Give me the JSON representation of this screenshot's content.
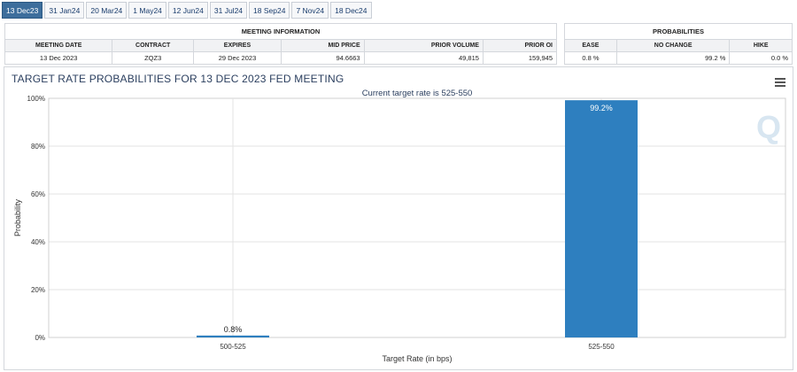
{
  "tabs": [
    {
      "label": "13 Dec23",
      "active": true
    },
    {
      "label": "31 Jan24",
      "active": false
    },
    {
      "label": "20 Mar24",
      "active": false
    },
    {
      "label": "1 May24",
      "active": false
    },
    {
      "label": "12 Jun24",
      "active": false
    },
    {
      "label": "31 Jul24",
      "active": false
    },
    {
      "label": "18 Sep24",
      "active": false
    },
    {
      "label": "7 Nov24",
      "active": false
    },
    {
      "label": "18 Dec24",
      "active": false
    }
  ],
  "meeting_info": {
    "group_label": "MEETING INFORMATION",
    "headers": [
      "MEETING DATE",
      "CONTRACT",
      "EXPIRES",
      "MID PRICE",
      "PRIOR VOLUME",
      "PRIOR OI"
    ],
    "values": [
      "13 Dec 2023",
      "ZQZ3",
      "29 Dec 2023",
      "94.6663",
      "49,815",
      "159,945"
    ]
  },
  "probabilities": {
    "group_label": "PROBABILITIES",
    "headers": [
      "EASE",
      "NO CHANGE",
      "HIKE"
    ],
    "values": [
      "0.8 %",
      "99.2 %",
      "0.0 %"
    ]
  },
  "chart_data": {
    "type": "bar",
    "title": "TARGET RATE PROBABILITIES FOR 13 DEC 2023 FED MEETING",
    "subtitle": "Current target rate is 525-550",
    "xlabel": "Target Rate (in bps)",
    "ylabel": "Probability",
    "categories": [
      "500-525",
      "525-550"
    ],
    "values": [
      0.8,
      99.2
    ],
    "data_labels": [
      "0.8%",
      "99.2%"
    ],
    "ylim": [
      0,
      100
    ],
    "yticks": [
      0,
      20,
      40,
      60,
      80,
      100
    ],
    "ytick_labels": [
      "0%",
      "20%",
      "40%",
      "60%",
      "80%",
      "100%"
    ],
    "bar_color": "#2e7fbf",
    "grid": true,
    "watermark": "Q"
  },
  "colors": {
    "accent": "#3d6e9c",
    "title": "#2b3f5f"
  }
}
